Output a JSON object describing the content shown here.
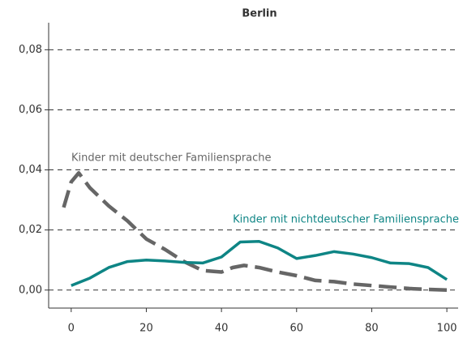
{
  "chart_data": {
    "type": "line",
    "title": "Berlin",
    "xlim": [
      -6,
      103
    ],
    "xticks": [
      0,
      20,
      40,
      60,
      80,
      100
    ],
    "ylim": [
      -0.006,
      0.089
    ],
    "yticks": [
      {
        "value": 0,
        "label": "0,00"
      },
      {
        "value": 0.02,
        "label": "0,02"
      },
      {
        "value": 0.04,
        "label": "0,04"
      },
      {
        "value": 0.06,
        "label": "0,06"
      },
      {
        "value": 0.08,
        "label": "0,08"
      }
    ],
    "grid": true,
    "series": [
      {
        "name": "Kinder mit deutscher Familiensprache",
        "color": "#666666",
        "dashed": true,
        "x": [
          -2,
          0,
          2,
          5,
          10,
          15,
          20,
          25,
          30,
          35,
          40,
          43,
          46,
          50,
          55,
          60,
          65,
          70,
          75,
          80,
          85,
          90,
          95,
          100
        ],
        "values": [
          0.0275,
          0.036,
          0.039,
          0.034,
          0.028,
          0.023,
          0.017,
          0.0135,
          0.0095,
          0.0065,
          0.006,
          0.0075,
          0.0082,
          0.0075,
          0.006,
          0.0048,
          0.0032,
          0.0028,
          0.002,
          0.0015,
          0.001,
          0.0005,
          0.0002,
          0
        ]
      },
      {
        "name": "Kinder mit nichtdeutscher Familiensprache",
        "color": "#0e8585",
        "dashed": false,
        "x": [
          0,
          5,
          10,
          15,
          20,
          25,
          30,
          35,
          40,
          45,
          50,
          55,
          60,
          65,
          70,
          75,
          80,
          85,
          90,
          95,
          100
        ],
        "values": [
          0.0015,
          0.004,
          0.0075,
          0.0095,
          0.01,
          0.0097,
          0.0092,
          0.009,
          0.011,
          0.016,
          0.0162,
          0.014,
          0.0105,
          0.0115,
          0.0128,
          0.012,
          0.0108,
          0.009,
          0.0088,
          0.0075,
          0.0035
        ]
      }
    ]
  }
}
